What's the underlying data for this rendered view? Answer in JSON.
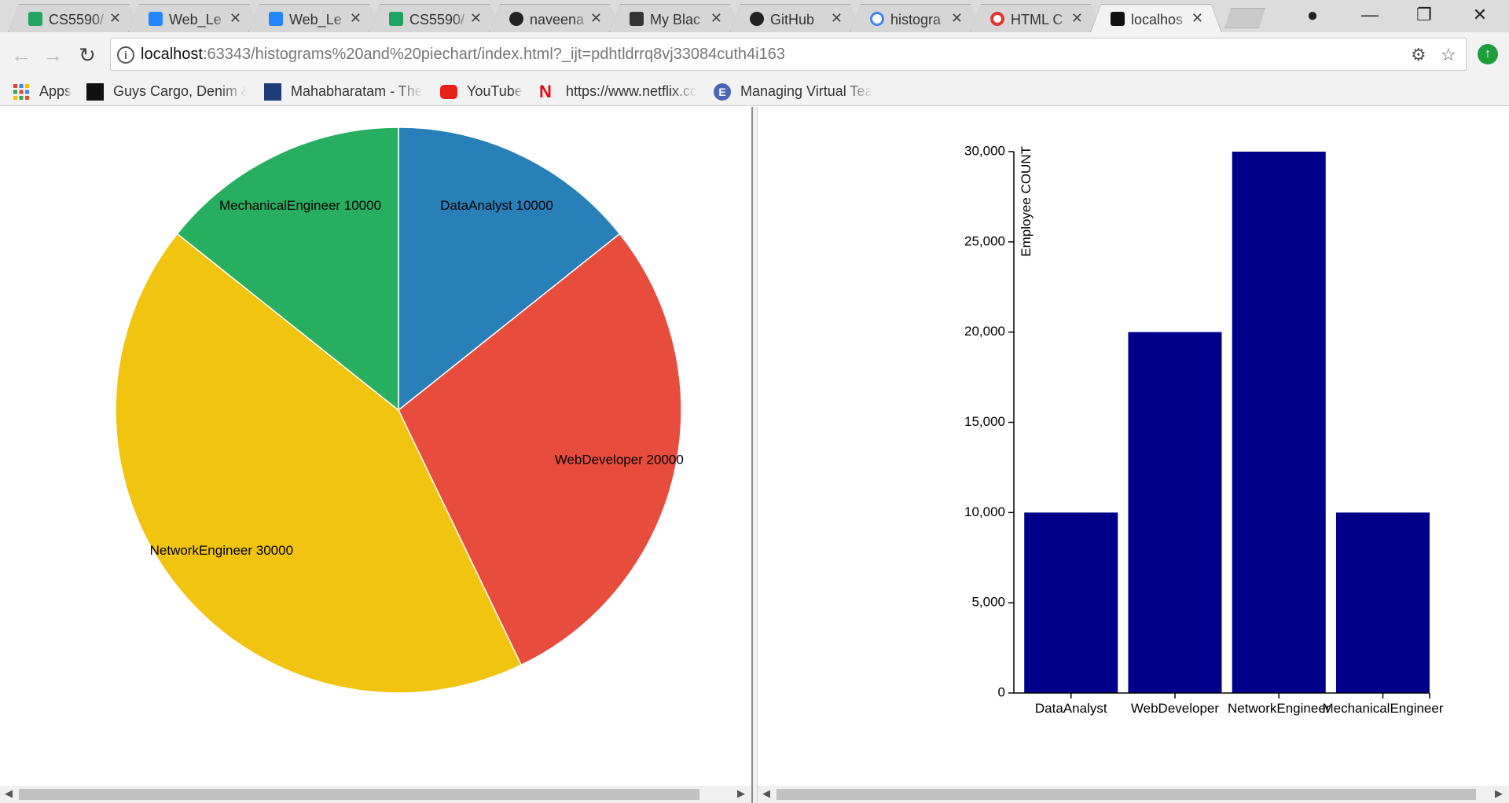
{
  "tabs": [
    {
      "title": "CS5590/",
      "icon": "sheets-icon",
      "color": "#1fa463"
    },
    {
      "title": "Web_Le",
      "icon": "box-icon",
      "color": "#2486fc"
    },
    {
      "title": "Web_Le",
      "icon": "box-icon",
      "color": "#2486fc"
    },
    {
      "title": "CS5590/",
      "icon": "sheets-icon",
      "color": "#1fa463"
    },
    {
      "title": "naveena",
      "icon": "github-icon",
      "color": "#222222"
    },
    {
      "title": "My Blac",
      "icon": "blackboard-icon",
      "color": "#333333"
    },
    {
      "title": "GitHub",
      "icon": "github-icon",
      "color": "#222222"
    },
    {
      "title": "histogra",
      "icon": "google-icon",
      "color": "#4285f4"
    },
    {
      "title": "HTML C",
      "icon": "opera-icon",
      "color": "#e2372c"
    },
    {
      "title": "localhos",
      "icon": "webstorm-icon",
      "color": "#111111"
    }
  ],
  "address_bar": {
    "host": "localhost",
    "path": ":63343/histograms%20and%20piechart/index.html?_ijt=pdhtldrrq8vj33084cuth4i163"
  },
  "bookmarks": [
    {
      "label": "Apps",
      "icon": "apps-grid-icon"
    },
    {
      "label": "Guys Cargo, Denim &",
      "icon": "cargo-icon"
    },
    {
      "label": "Mahabharatam - The",
      "icon": "mahabharatam-icon"
    },
    {
      "label": "YouTube",
      "icon": "youtube-icon"
    },
    {
      "label": "https://www.netflix.cc",
      "icon": "netflix-icon"
    },
    {
      "label": "Managing Virtual Tea",
      "icon": "e-icon"
    }
  ],
  "colors": {
    "data_analyst": "#2980b9",
    "web_developer": "#e74c3c",
    "network_engineer": "#f1c40f",
    "mechanical_engineer": "#27ae60",
    "bar": "#00008b"
  },
  "chart_data": [
    {
      "type": "pie",
      "categories": [
        "DataAnalyst",
        "WebDeveloper",
        "NetworkEngineer",
        "MechanicalEngineer"
      ],
      "values": [
        10000,
        20000,
        30000,
        10000
      ],
      "labels": [
        "DataAnalyst 10000",
        "WebDeveloper 20000",
        "NetworkEngineer 30000",
        "MechanicalEngineer 10000"
      ]
    },
    {
      "type": "bar",
      "categories": [
        "DataAnalyst",
        "WebDeveloper",
        "NetworkEngineer",
        "MechanicalEngineer"
      ],
      "values": [
        10000,
        20000,
        30000,
        10000
      ],
      "ylabel": "Employee COUNT",
      "ylim": [
        0,
        30000
      ],
      "yticks": [
        0,
        5000,
        10000,
        15000,
        20000,
        25000,
        30000
      ],
      "ytick_labels": [
        "0",
        "5,000",
        "10,000",
        "15,000",
        "20,000",
        "25,000",
        "30,000"
      ]
    }
  ]
}
